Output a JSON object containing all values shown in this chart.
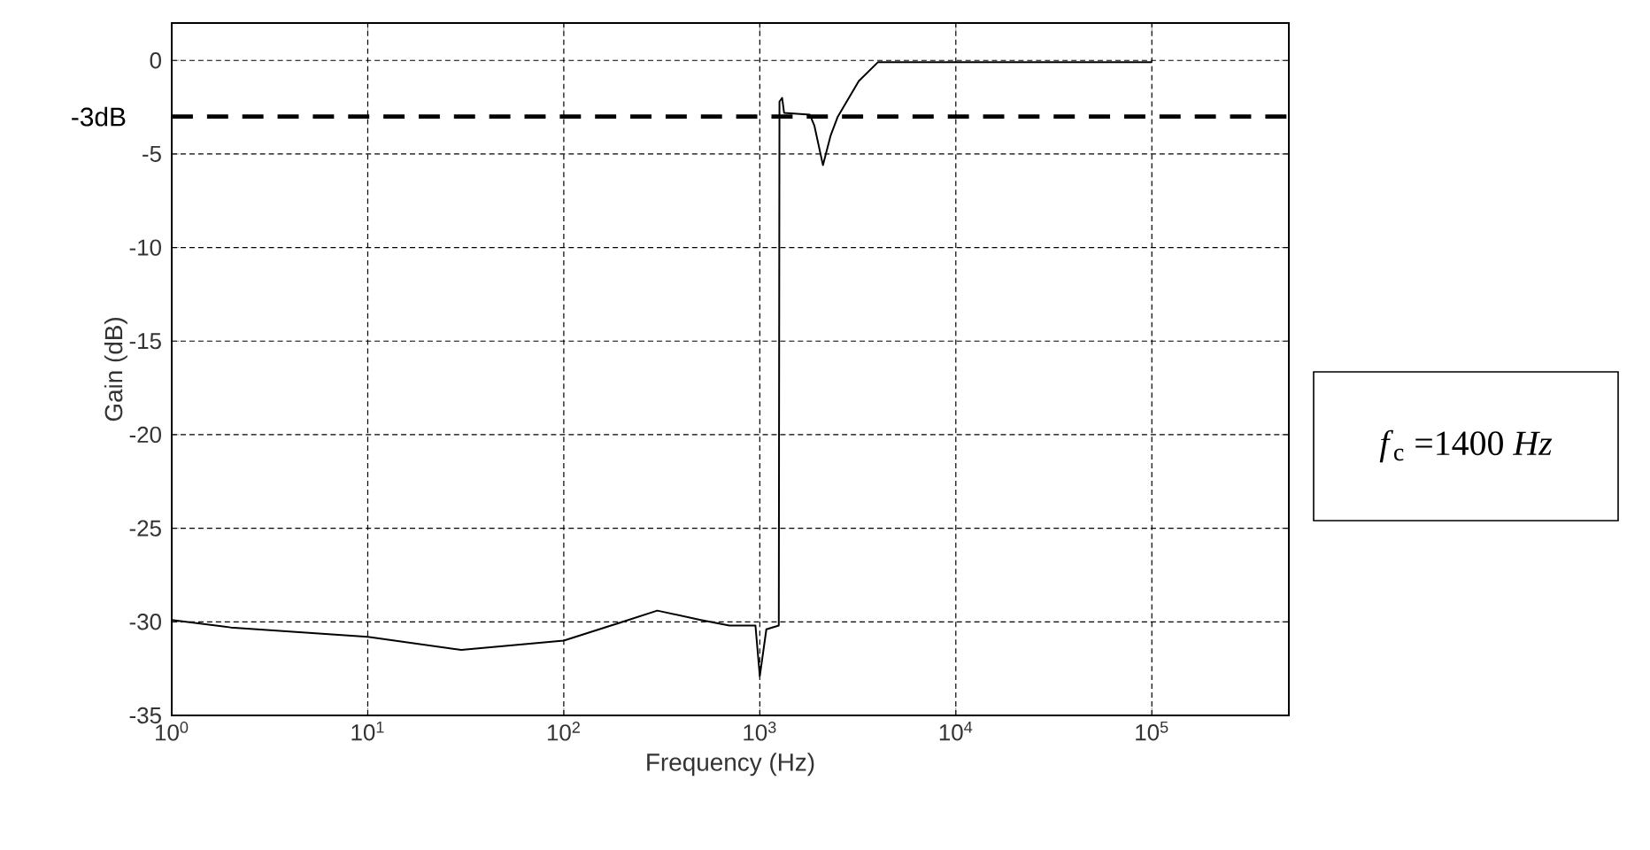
{
  "chart_data": {
    "type": "line",
    "xlabel": "Frequency (Hz)",
    "ylabel": "Gain (dB)",
    "log": "x",
    "grid": true,
    "line_style": "solid",
    "xlim": [
      1,
      500000
    ],
    "ylim": [
      -35,
      2
    ],
    "xticks": [
      {
        "value": 1,
        "label": "10$^{0}$"
      },
      {
        "value": 10,
        "label": "10$^{1}$"
      },
      {
        "value": 100,
        "label": "10$^{2}$"
      },
      {
        "value": 1000,
        "label": "10$^{3}$"
      },
      {
        "value": 10000,
        "label": "10$^{4}$"
      },
      {
        "value": 100000,
        "label": "10$^{5}$"
      }
    ],
    "yticks": [
      0,
      -5,
      -10,
      -15,
      -20,
      -25,
      -30,
      -35
    ],
    "x": [
      1,
      2,
      10,
      30,
      100,
      200,
      300,
      500,
      700,
      950,
      1000,
      1080,
      1250,
      1260,
      1300,
      1330,
      1800,
      1900,
      2100,
      2300,
      2500,
      3200,
      4000,
      10000,
      100000
    ],
    "series": [
      {
        "color": "#000000",
        "values": [
          -29.9,
          -30.3,
          -30.8,
          -31.5,
          -31.0,
          -30.0,
          -29.4,
          -29.9,
          -30.2,
          -30.2,
          -32.9,
          -30.4,
          -30.2,
          -2.2,
          -2.0,
          -2.8,
          -2.9,
          -3.5,
          -5.6,
          -4.0,
          -3.0,
          -1.1,
          -0.1,
          -0.1,
          -0.1
        ]
      }
    ],
    "ref_lines": [
      {
        "axis": "y",
        "value": -3,
        "label": "-3dB",
        "color": "#000000",
        "line_style": "dashed"
      }
    ],
    "annotations": [
      "*f*$_{c}$ =1400 *Hz*"
    ]
  }
}
